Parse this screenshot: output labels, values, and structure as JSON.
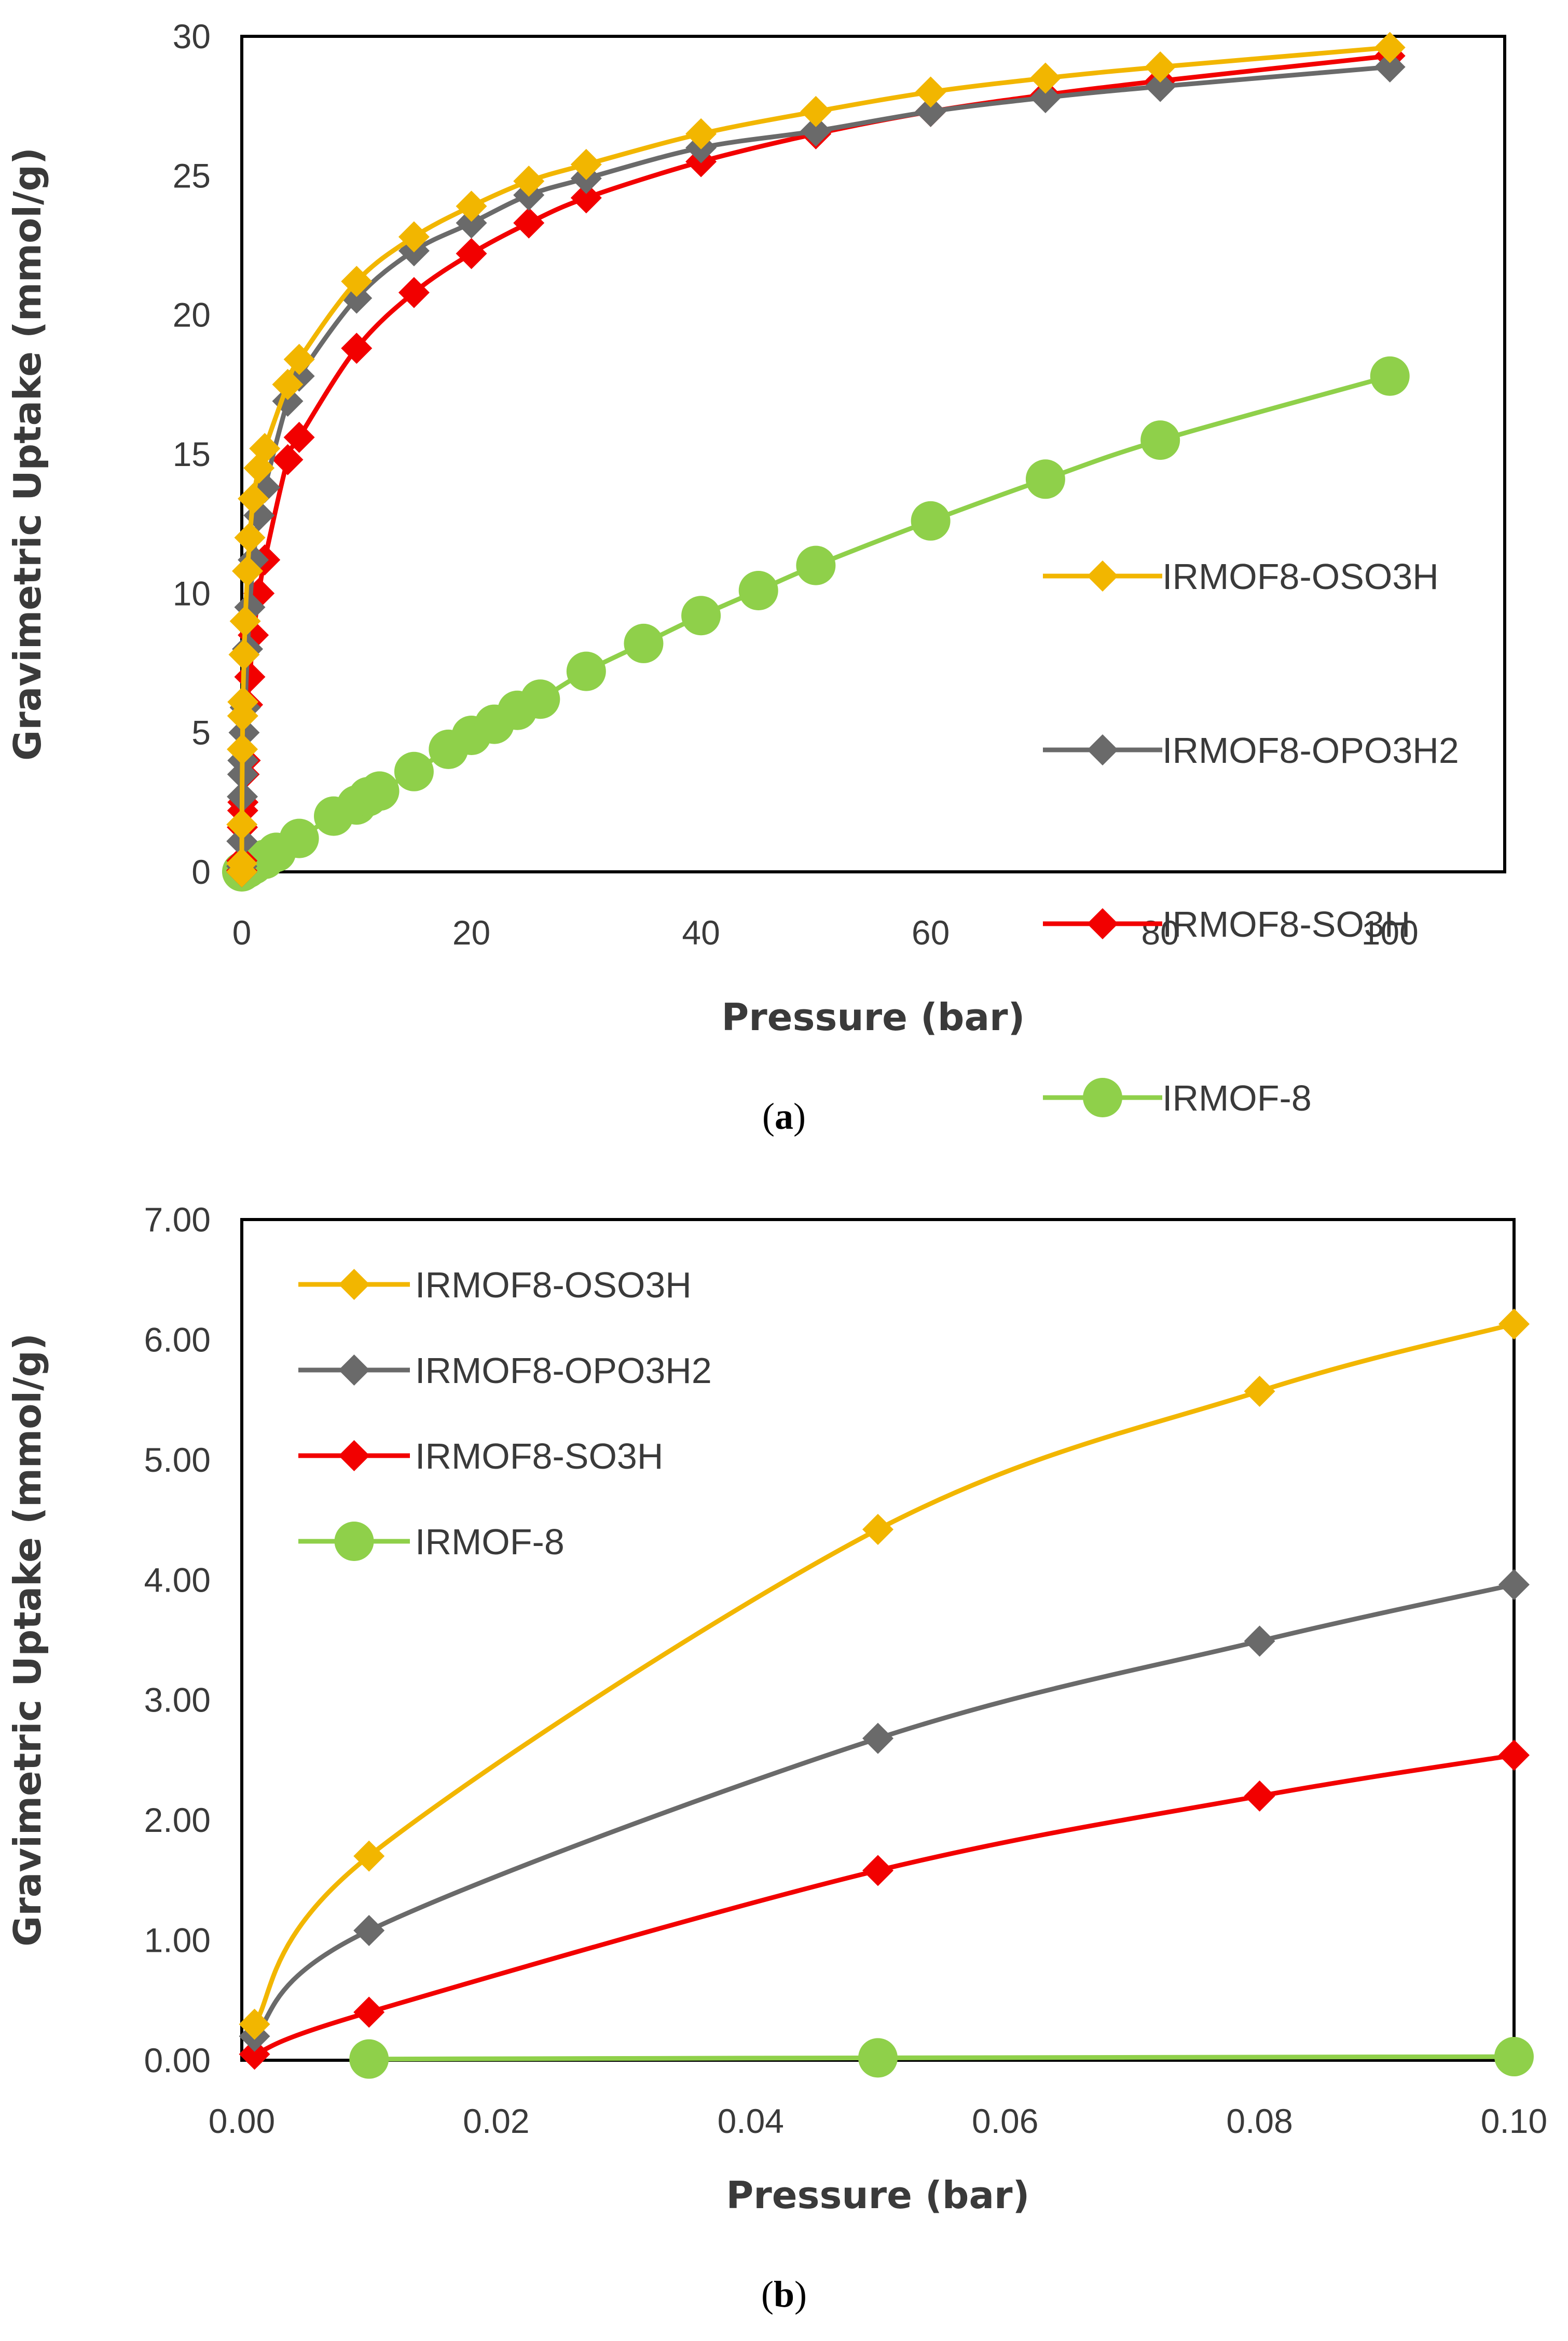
{
  "colors": {
    "IRMOF8-OSO3H": "#f2b600",
    "IRMOF8-OPO3H2": "#6a6a6a",
    "IRMOF8-SO3H": "#f20000",
    "IRMOF-8": "#8fd04a",
    "axis": "#000000",
    "text": "#3a3a3a"
  },
  "chart_data": [
    {
      "id": "a",
      "type": "line",
      "caption": {
        "open": "(",
        "letter": "a",
        "close": ")"
      },
      "xlabel": "Pressure (bar)",
      "ylabel": "Gravimetric Uptake (mmol/g)",
      "xlim": [
        0,
        110
      ],
      "ylim": [
        0,
        30
      ],
      "xticks": [
        0,
        20,
        40,
        60,
        80,
        100
      ],
      "yticks": [
        0,
        5,
        10,
        15,
        20,
        25,
        30
      ],
      "tick_format": "int",
      "legend_position": "center-right",
      "series": [
        {
          "name": "IRMOF8-OSO3H",
          "marker": "diamond",
          "x": [
            0,
            0.001,
            0.01,
            0.05,
            0.08,
            0.1,
            0.2,
            0.3,
            0.5,
            0.7,
            1,
            1.5,
            2,
            4,
            5,
            10,
            15,
            20,
            25,
            30,
            40,
            50,
            60,
            70,
            80,
            100
          ],
          "y": [
            0,
            0.3,
            1.7,
            4.4,
            5.6,
            6.1,
            7.8,
            9.0,
            10.8,
            12.0,
            13.4,
            14.5,
            15.2,
            17.5,
            18.4,
            21.2,
            22.8,
            23.9,
            24.8,
            25.4,
            26.5,
            27.3,
            28.0,
            28.5,
            28.9,
            29.6
          ]
        },
        {
          "name": "IRMOF8-OPO3H2",
          "marker": "diamond",
          "x": [
            0,
            0.001,
            0.01,
            0.05,
            0.08,
            0.1,
            0.2,
            0.3,
            0.5,
            0.7,
            1,
            1.5,
            2,
            4,
            5,
            10,
            15,
            20,
            25,
            30,
            40,
            50,
            60,
            70,
            80,
            100
          ],
          "y": [
            0,
            0.2,
            1.1,
            2.7,
            3.5,
            4.0,
            5.0,
            5.9,
            8.0,
            9.5,
            11.2,
            12.8,
            13.8,
            16.9,
            17.8,
            20.6,
            22.3,
            23.3,
            24.3,
            24.9,
            26.0,
            26.6,
            27.3,
            27.8,
            28.2,
            28.9
          ]
        },
        {
          "name": "IRMOF8-SO3H",
          "marker": "diamond",
          "x": [
            0,
            0.001,
            0.01,
            0.05,
            0.08,
            0.1,
            0.2,
            0.3,
            0.5,
            0.7,
            1,
            1.5,
            2,
            4,
            5,
            10,
            15,
            20,
            25,
            30,
            40,
            50,
            60,
            70,
            80,
            100
          ],
          "y": [
            0,
            0.05,
            0.4,
            1.6,
            2.2,
            2.5,
            3.5,
            4.0,
            6.0,
            7.0,
            8.5,
            10.0,
            11.2,
            14.8,
            15.6,
            18.8,
            20.8,
            22.2,
            23.3,
            24.2,
            25.5,
            26.5,
            27.3,
            27.9,
            28.4,
            29.3
          ]
        },
        {
          "name": "IRMOF-8",
          "marker": "circle",
          "x": [
            0,
            0.01,
            0.05,
            0.08,
            0.1,
            0.5,
            1,
            2,
            3,
            5,
            8,
            10,
            11,
            12,
            15,
            18,
            20,
            22,
            24,
            26,
            30,
            35,
            40,
            45,
            50,
            60,
            70,
            80,
            100
          ],
          "y": [
            0,
            0.01,
            0.02,
            0.02,
            0.03,
            0.12,
            0.25,
            0.45,
            0.7,
            1.2,
            2.0,
            2.4,
            2.7,
            2.9,
            3.6,
            4.4,
            4.9,
            5.3,
            5.8,
            6.2,
            7.2,
            8.2,
            9.2,
            10.1,
            11.0,
            12.6,
            14.1,
            15.5,
            17.8
          ]
        }
      ]
    },
    {
      "id": "b",
      "type": "line",
      "caption": {
        "open": "(",
        "letter": "b",
        "close": ")"
      },
      "xlabel": "Pressure (bar)",
      "ylabel": "Gravimetric Uptake (mmol/g)",
      "xlim": [
        0,
        0.1
      ],
      "ylim": [
        0,
        7
      ],
      "xticks": [
        0,
        0.02,
        0.04,
        0.06,
        0.08,
        0.1
      ],
      "yticks": [
        0,
        1,
        2,
        3,
        4,
        5,
        6,
        7
      ],
      "tick_format": "2dp",
      "legend_position": "top-left",
      "series": [
        {
          "name": "IRMOF8-OSO3H",
          "marker": "diamond",
          "x": [
            0.001,
            0.01,
            0.05,
            0.08,
            0.1
          ],
          "y": [
            0.3,
            1.7,
            4.42,
            5.57,
            6.13
          ]
        },
        {
          "name": "IRMOF8-OPO3H2",
          "marker": "diamond",
          "x": [
            0.001,
            0.01,
            0.05,
            0.08,
            0.1
          ],
          "y": [
            0.2,
            1.08,
            2.68,
            3.49,
            3.96
          ]
        },
        {
          "name": "IRMOF8-SO3H",
          "marker": "diamond",
          "x": [
            0.001,
            0.01,
            0.05,
            0.08,
            0.1
          ],
          "y": [
            0.05,
            0.4,
            1.58,
            2.2,
            2.54
          ]
        },
        {
          "name": "IRMOF-8",
          "marker": "circle",
          "x": [
            0.01,
            0.05,
            0.1
          ],
          "y": [
            0.01,
            0.02,
            0.03
          ]
        }
      ]
    }
  ]
}
